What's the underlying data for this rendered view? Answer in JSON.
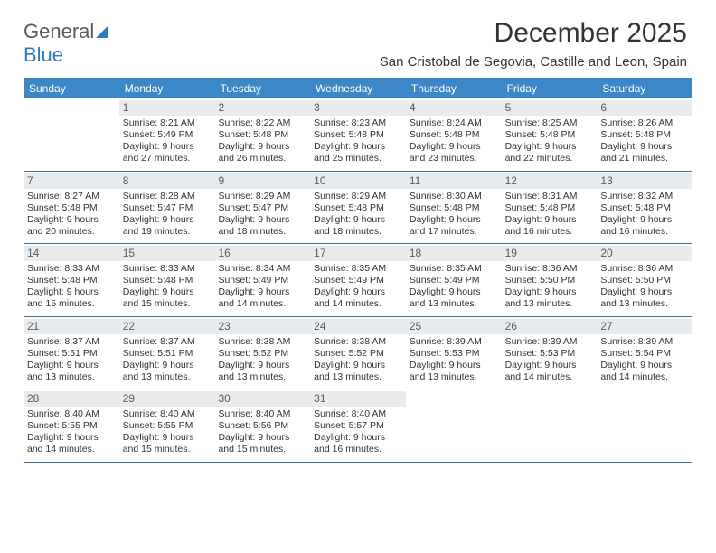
{
  "logo": {
    "text_a": "General",
    "text_b": "Blue"
  },
  "title": "December 2025",
  "subtitle": "San Cristobal de Segovia, Castille and Leon, Spain",
  "colors": {
    "header_bg": "#3b87c8",
    "header_text": "#ffffff",
    "daynum_bg": "#e8ecef",
    "daynum_text": "#5a5a5a",
    "border": "#3b6fa0",
    "page_bg": "#ffffff",
    "body_text": "#333333",
    "logo_gray": "#5a5a5a",
    "logo_blue": "#2f7bbf"
  },
  "fonts": {
    "title_size": 30,
    "subtitle_size": 15,
    "head_size": 12,
    "cell_size": 10.5
  },
  "day_headers": [
    "Sunday",
    "Monday",
    "Tuesday",
    "Wednesday",
    "Thursday",
    "Friday",
    "Saturday"
  ],
  "weeks": [
    [
      {
        "n": "",
        "rise": "",
        "set": "",
        "dl1": "",
        "dl2": "",
        "empty": true
      },
      {
        "n": "1",
        "rise": "Sunrise: 8:21 AM",
        "set": "Sunset: 5:49 PM",
        "dl1": "Daylight: 9 hours",
        "dl2": "and 27 minutes."
      },
      {
        "n": "2",
        "rise": "Sunrise: 8:22 AM",
        "set": "Sunset: 5:48 PM",
        "dl1": "Daylight: 9 hours",
        "dl2": "and 26 minutes."
      },
      {
        "n": "3",
        "rise": "Sunrise: 8:23 AM",
        "set": "Sunset: 5:48 PM",
        "dl1": "Daylight: 9 hours",
        "dl2": "and 25 minutes."
      },
      {
        "n": "4",
        "rise": "Sunrise: 8:24 AM",
        "set": "Sunset: 5:48 PM",
        "dl1": "Daylight: 9 hours",
        "dl2": "and 23 minutes."
      },
      {
        "n": "5",
        "rise": "Sunrise: 8:25 AM",
        "set": "Sunset: 5:48 PM",
        "dl1": "Daylight: 9 hours",
        "dl2": "and 22 minutes."
      },
      {
        "n": "6",
        "rise": "Sunrise: 8:26 AM",
        "set": "Sunset: 5:48 PM",
        "dl1": "Daylight: 9 hours",
        "dl2": "and 21 minutes."
      }
    ],
    [
      {
        "n": "7",
        "rise": "Sunrise: 8:27 AM",
        "set": "Sunset: 5:48 PM",
        "dl1": "Daylight: 9 hours",
        "dl2": "and 20 minutes."
      },
      {
        "n": "8",
        "rise": "Sunrise: 8:28 AM",
        "set": "Sunset: 5:47 PM",
        "dl1": "Daylight: 9 hours",
        "dl2": "and 19 minutes."
      },
      {
        "n": "9",
        "rise": "Sunrise: 8:29 AM",
        "set": "Sunset: 5:47 PM",
        "dl1": "Daylight: 9 hours",
        "dl2": "and 18 minutes."
      },
      {
        "n": "10",
        "rise": "Sunrise: 8:29 AM",
        "set": "Sunset: 5:48 PM",
        "dl1": "Daylight: 9 hours",
        "dl2": "and 18 minutes."
      },
      {
        "n": "11",
        "rise": "Sunrise: 8:30 AM",
        "set": "Sunset: 5:48 PM",
        "dl1": "Daylight: 9 hours",
        "dl2": "and 17 minutes."
      },
      {
        "n": "12",
        "rise": "Sunrise: 8:31 AM",
        "set": "Sunset: 5:48 PM",
        "dl1": "Daylight: 9 hours",
        "dl2": "and 16 minutes."
      },
      {
        "n": "13",
        "rise": "Sunrise: 8:32 AM",
        "set": "Sunset: 5:48 PM",
        "dl1": "Daylight: 9 hours",
        "dl2": "and 16 minutes."
      }
    ],
    [
      {
        "n": "14",
        "rise": "Sunrise: 8:33 AM",
        "set": "Sunset: 5:48 PM",
        "dl1": "Daylight: 9 hours",
        "dl2": "and 15 minutes."
      },
      {
        "n": "15",
        "rise": "Sunrise: 8:33 AM",
        "set": "Sunset: 5:48 PM",
        "dl1": "Daylight: 9 hours",
        "dl2": "and 15 minutes."
      },
      {
        "n": "16",
        "rise": "Sunrise: 8:34 AM",
        "set": "Sunset: 5:49 PM",
        "dl1": "Daylight: 9 hours",
        "dl2": "and 14 minutes."
      },
      {
        "n": "17",
        "rise": "Sunrise: 8:35 AM",
        "set": "Sunset: 5:49 PM",
        "dl1": "Daylight: 9 hours",
        "dl2": "and 14 minutes."
      },
      {
        "n": "18",
        "rise": "Sunrise: 8:35 AM",
        "set": "Sunset: 5:49 PM",
        "dl1": "Daylight: 9 hours",
        "dl2": "and 13 minutes."
      },
      {
        "n": "19",
        "rise": "Sunrise: 8:36 AM",
        "set": "Sunset: 5:50 PM",
        "dl1": "Daylight: 9 hours",
        "dl2": "and 13 minutes."
      },
      {
        "n": "20",
        "rise": "Sunrise: 8:36 AM",
        "set": "Sunset: 5:50 PM",
        "dl1": "Daylight: 9 hours",
        "dl2": "and 13 minutes."
      }
    ],
    [
      {
        "n": "21",
        "rise": "Sunrise: 8:37 AM",
        "set": "Sunset: 5:51 PM",
        "dl1": "Daylight: 9 hours",
        "dl2": "and 13 minutes."
      },
      {
        "n": "22",
        "rise": "Sunrise: 8:37 AM",
        "set": "Sunset: 5:51 PM",
        "dl1": "Daylight: 9 hours",
        "dl2": "and 13 minutes."
      },
      {
        "n": "23",
        "rise": "Sunrise: 8:38 AM",
        "set": "Sunset: 5:52 PM",
        "dl1": "Daylight: 9 hours",
        "dl2": "and 13 minutes."
      },
      {
        "n": "24",
        "rise": "Sunrise: 8:38 AM",
        "set": "Sunset: 5:52 PM",
        "dl1": "Daylight: 9 hours",
        "dl2": "and 13 minutes."
      },
      {
        "n": "25",
        "rise": "Sunrise: 8:39 AM",
        "set": "Sunset: 5:53 PM",
        "dl1": "Daylight: 9 hours",
        "dl2": "and 13 minutes."
      },
      {
        "n": "26",
        "rise": "Sunrise: 8:39 AM",
        "set": "Sunset: 5:53 PM",
        "dl1": "Daylight: 9 hours",
        "dl2": "and 14 minutes."
      },
      {
        "n": "27",
        "rise": "Sunrise: 8:39 AM",
        "set": "Sunset: 5:54 PM",
        "dl1": "Daylight: 9 hours",
        "dl2": "and 14 minutes."
      }
    ],
    [
      {
        "n": "28",
        "rise": "Sunrise: 8:40 AM",
        "set": "Sunset: 5:55 PM",
        "dl1": "Daylight: 9 hours",
        "dl2": "and 14 minutes."
      },
      {
        "n": "29",
        "rise": "Sunrise: 8:40 AM",
        "set": "Sunset: 5:55 PM",
        "dl1": "Daylight: 9 hours",
        "dl2": "and 15 minutes."
      },
      {
        "n": "30",
        "rise": "Sunrise: 8:40 AM",
        "set": "Sunset: 5:56 PM",
        "dl1": "Daylight: 9 hours",
        "dl2": "and 15 minutes."
      },
      {
        "n": "31",
        "rise": "Sunrise: 8:40 AM",
        "set": "Sunset: 5:57 PM",
        "dl1": "Daylight: 9 hours",
        "dl2": "and 16 minutes."
      },
      {
        "n": "",
        "rise": "",
        "set": "",
        "dl1": "",
        "dl2": "",
        "empty": true
      },
      {
        "n": "",
        "rise": "",
        "set": "",
        "dl1": "",
        "dl2": "",
        "empty": true
      },
      {
        "n": "",
        "rise": "",
        "set": "",
        "dl1": "",
        "dl2": "",
        "empty": true
      }
    ]
  ]
}
